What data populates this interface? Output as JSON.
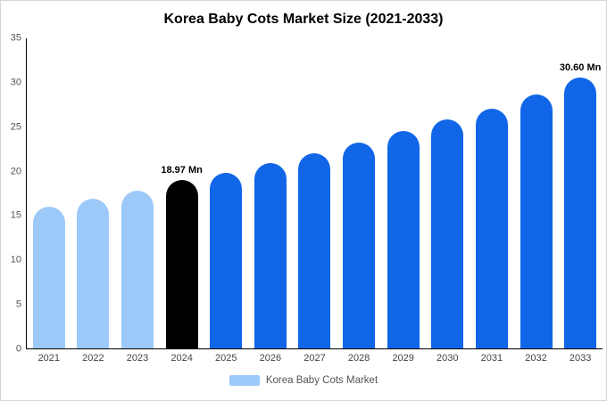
{
  "chart_data": {
    "type": "bar",
    "title": "Korea Baby Cots Market Size (2021-2033)",
    "categories": [
      "2021",
      "2022",
      "2023",
      "2024",
      "2025",
      "2026",
      "2027",
      "2028",
      "2029",
      "2030",
      "2031",
      "2032",
      "2033"
    ],
    "values": [
      16.0,
      16.9,
      17.8,
      18.97,
      19.8,
      20.9,
      22.0,
      23.2,
      24.5,
      25.8,
      27.1,
      28.7,
      30.6
    ],
    "unit": "Mn",
    "bar_colors": [
      "#9dc9f8",
      "#9dc9f8",
      "#9dc9f8",
      "#000000",
      "#1166e8",
      "#1166e8",
      "#1166e8",
      "#1166e8",
      "#1166e8",
      "#1166e8",
      "#1166e8",
      "#1166e8",
      "#1166e8"
    ],
    "annotations": [
      {
        "index": 3,
        "text": "18.97 Mn"
      },
      {
        "index": 12,
        "text": "30.60 Mn"
      }
    ],
    "xlabel": "",
    "ylabel": "",
    "ylim": [
      0,
      35
    ],
    "yticks": [
      0,
      5,
      10,
      15,
      20,
      25,
      30,
      35
    ],
    "grid": false,
    "legend_position": "bottom",
    "legend": [
      {
        "label": "Korea Baby Cots Market",
        "color": "#9dc9f8"
      }
    ]
  }
}
